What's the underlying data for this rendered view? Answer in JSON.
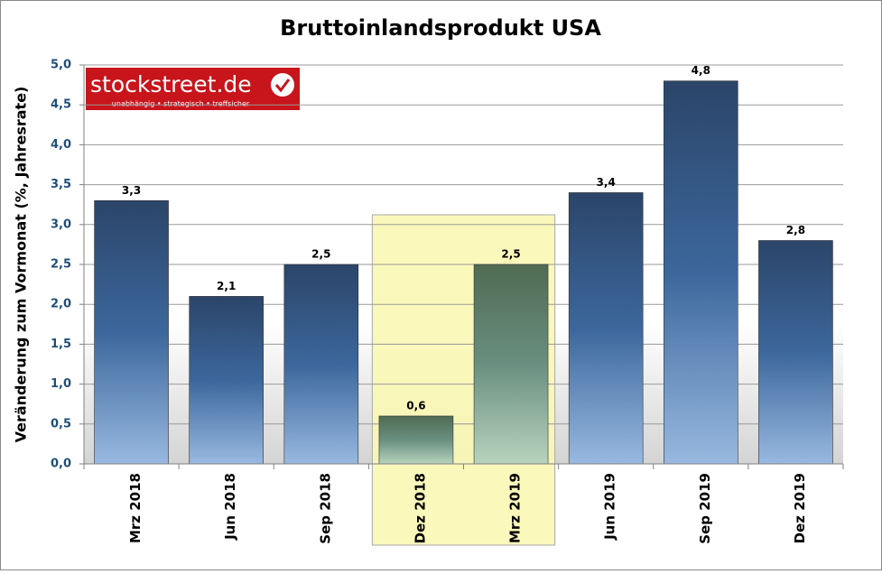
{
  "chart_data": {
    "type": "bar",
    "title": "Bruttoinlandsprodukt USA",
    "y_label": "Veränderung zum Vormonat (%, Jahresrate)",
    "categories": [
      "Mrz 2018",
      "Jun 2018",
      "Sep 2018",
      "Dez 2018",
      "Mrz 2019",
      "Jun 2019",
      "Sep 2019",
      "Dez 2019"
    ],
    "values": [
      3.3,
      2.1,
      2.5,
      0.6,
      2.5,
      3.4,
      4.8,
      2.8
    ],
    "value_labels": [
      "3,3",
      "2,1",
      "2,5",
      "0,6",
      "2,5",
      "3,4",
      "4,8",
      "2,8"
    ],
    "color": "#34598a",
    "highlight": [
      "Dez 2018",
      "Mrz 2019"
    ],
    "highlight_color": "#56735a",
    "ylim": [
      0,
      5
    ],
    "yticks": [
      {
        "value": 0,
        "label": "0,0"
      },
      {
        "value": 0.5,
        "label": "0,5"
      },
      {
        "value": 1,
        "label": "1,0"
      },
      {
        "value": 1.5,
        "label": "1,5"
      },
      {
        "value": 2,
        "label": "2,0"
      },
      {
        "value": 2.5,
        "label": "2,5"
      },
      {
        "value": 3,
        "label": "3,0"
      },
      {
        "value": 3.5,
        "label": "3,5"
      },
      {
        "value": 4,
        "label": "4,0"
      },
      {
        "value": 4.5,
        "label": "4,5"
      },
      {
        "value": 5,
        "label": "5,0"
      }
    ],
    "grid": true
  },
  "logo": {
    "name": "stockstreet.de",
    "tagline": "unabhängig • strategisch • treffsicher"
  }
}
